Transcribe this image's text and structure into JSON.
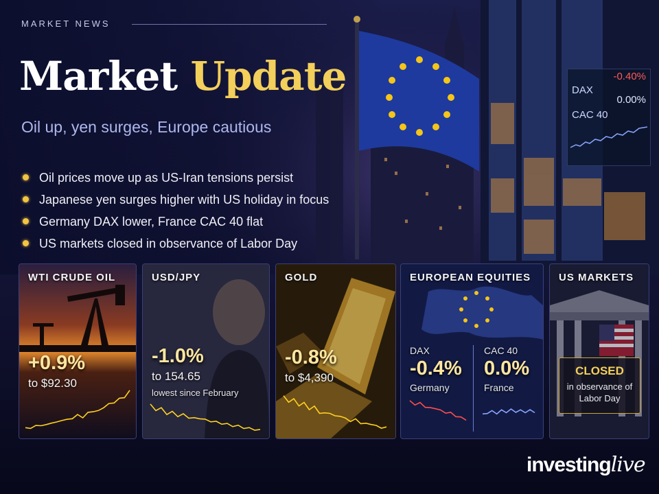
{
  "header": {
    "kicker": "MARKET NEWS",
    "title_part1": "Market",
    "title_part2": "Update",
    "subtitle": "Oil up, yen surges, Europe cautious"
  },
  "bullets": [
    "Oil prices move up as US-Iran tensions persist",
    "Japanese yen surges higher with US holiday in focus",
    "Germany DAX lower, France CAC 40 flat",
    "US markets closed in observance of Labor Day"
  ],
  "ticker_board": {
    "rows": [
      {
        "name": "DAX",
        "value": "-0.40%",
        "color": "#ff5a5a"
      },
      {
        "name": "CAC 40",
        "value": "0.00%",
        "color": "#dfe5ff"
      }
    ]
  },
  "cards": {
    "oil": {
      "label": "WTI CRUDE OIL",
      "change": "+0.9%",
      "price": "to $92.30",
      "trend": [
        0.05,
        0.08,
        0.1,
        0.14,
        0.12,
        0.2,
        0.18,
        0.26,
        0.24,
        0.3,
        0.35,
        0.32,
        0.4,
        0.46,
        0.44,
        0.55,
        0.6,
        0.66,
        0.72,
        0.78,
        0.9
      ]
    },
    "usdjpy": {
      "label": "USD/JPY",
      "change": "-1.0%",
      "price": "to 154.65",
      "note": "lowest since February",
      "trend": [
        0.9,
        0.75,
        0.78,
        0.62,
        0.66,
        0.55,
        0.58,
        0.5,
        0.45,
        0.48,
        0.4,
        0.38,
        0.33,
        0.3,
        0.26,
        0.22,
        0.2,
        0.16,
        0.12,
        0.1,
        0.06
      ]
    },
    "gold": {
      "label": "GOLD",
      "change": "-0.8%",
      "price": "to $4,390",
      "trend": [
        0.92,
        0.8,
        0.84,
        0.7,
        0.74,
        0.6,
        0.64,
        0.5,
        0.46,
        0.5,
        0.38,
        0.42,
        0.32,
        0.28,
        0.3,
        0.22,
        0.18,
        0.2,
        0.12,
        0.1,
        0.08
      ]
    },
    "europe": {
      "label": "EUROPEAN EQUITIES",
      "dax": {
        "name": "DAX",
        "change": "-0.4%",
        "country": "Germany",
        "trend": [
          0.9,
          0.8,
          0.82,
          0.7,
          0.6,
          0.64,
          0.5,
          0.45,
          0.4,
          0.3,
          0.2,
          0.15
        ]
      },
      "cac": {
        "name": "CAC 40",
        "change": "0.0%",
        "country": "France",
        "trend": [
          0.3,
          0.45,
          0.5,
          0.42,
          0.55,
          0.5,
          0.6,
          0.52,
          0.55,
          0.5,
          0.56,
          0.5
        ]
      }
    },
    "us": {
      "label": "US MARKETS",
      "status": "CLOSED",
      "note": "in observance of Labor Day"
    }
  },
  "brand": {
    "part1": "investing",
    "part2": "live"
  },
  "colors": {
    "gold": "#f3cf5b",
    "down": "#ff4d4d",
    "up_cac": "#8aa4ff",
    "spark": "#ffd21f"
  },
  "icons": [
    "eu-flag-icon",
    "oil-pump-icon",
    "gold-bar-icon",
    "europe-map-icon",
    "stock-exchange-building-icon",
    "us-flag-icon"
  ]
}
